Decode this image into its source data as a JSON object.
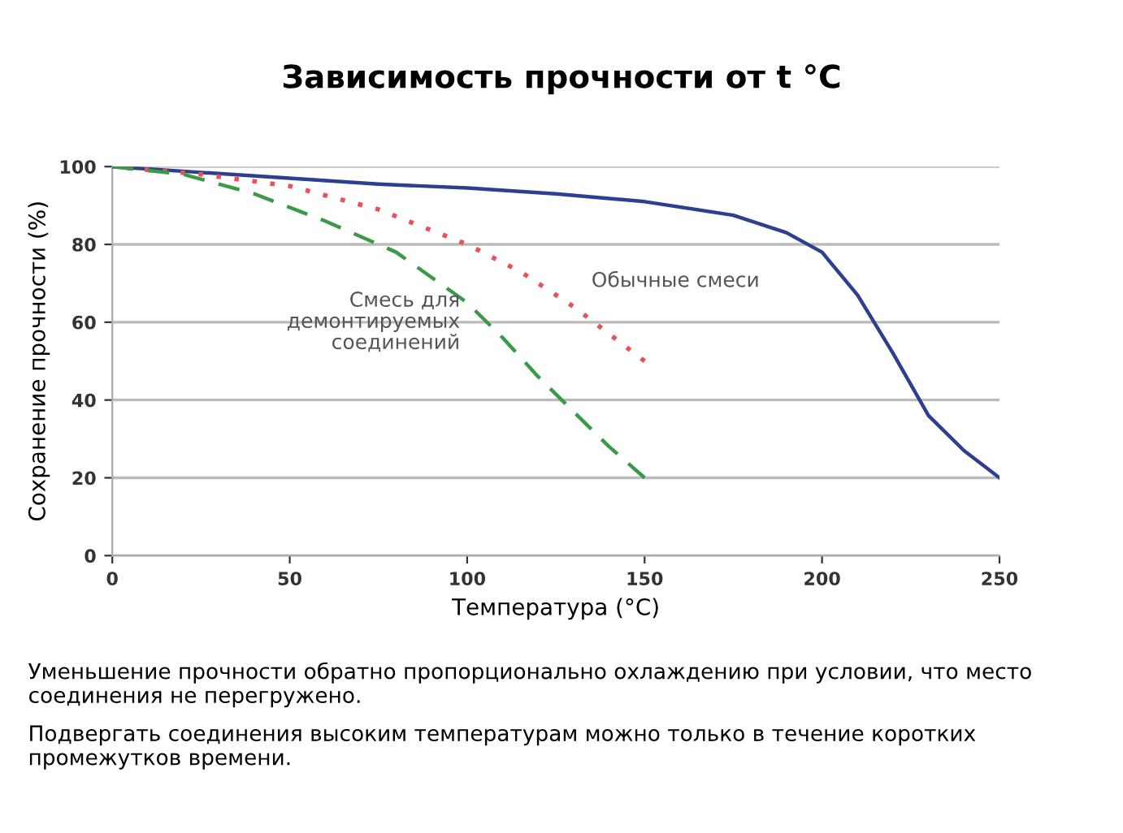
{
  "chart_data": {
    "type": "line",
    "title": "Зависимость прочности от t °C",
    "xlabel": "Температура (°C)",
    "ylabel": "Сохранение прочности (%)",
    "series": [
      {
        "color": "#2e3f8f",
        "line_style": "solid",
        "x": [
          0,
          25,
          50,
          75,
          100,
          125,
          150,
          175,
          190,
          200,
          210,
          220,
          230,
          240,
          250
        ],
        "values": [
          100,
          98.5,
          97,
          95.5,
          94.5,
          93,
          91,
          87.5,
          83,
          78,
          67,
          52,
          36,
          27,
          20
        ]
      },
      {
        "name": "Обычные смеси",
        "color": "#e8505a",
        "line_style": "dotted",
        "x": [
          0,
          25,
          50,
          75,
          100,
          115,
          130,
          140,
          150
        ],
        "values": [
          100,
          98,
          95,
          89,
          80,
          73,
          64,
          57,
          50
        ]
      },
      {
        "name": "Смесь для\nдемонтируемых\nсоединений",
        "color": "#3a9a48",
        "line_style": "dashed",
        "x": [
          0,
          20,
          40,
          60,
          80,
          100,
          110,
          120,
          130,
          140,
          150
        ],
        "values": [
          100,
          98,
          93,
          86,
          78,
          65,
          56,
          46,
          37,
          28,
          20
        ]
      }
    ],
    "xlim": [
      0,
      250
    ],
    "xticks": [
      0,
      50,
      100,
      150,
      200,
      250
    ],
    "ylim": [
      0,
      100
    ],
    "yticks": [
      0,
      20,
      40,
      60,
      80,
      100
    ],
    "grid": "y",
    "legend": false,
    "marker": "none",
    "annotations": [
      "Уменьшение прочности обратно пропорционально охлаждению при условии, что место соединения не перегружено.",
      "Подвергать соединения высоким температурам можно только в течение коротких промежутков времени."
    ]
  }
}
